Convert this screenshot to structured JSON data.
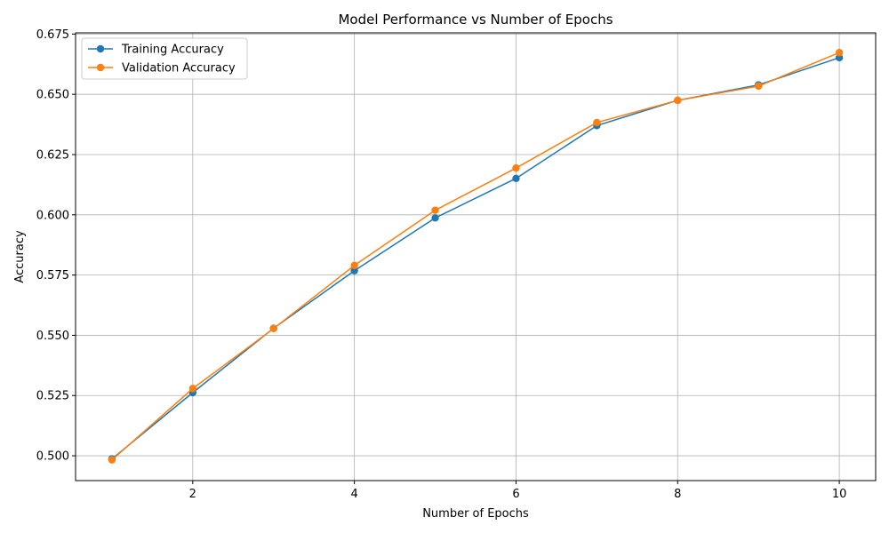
{
  "chart_data": {
    "type": "line",
    "title": "Model Performance vs Number of Epochs",
    "xlabel": "Number of Epochs",
    "ylabel": "Accuracy",
    "x": [
      1,
      2,
      3,
      4,
      5,
      6,
      7,
      8,
      9,
      10
    ],
    "xlim": [
      0.55,
      10.45
    ],
    "ylim": [
      0.4897,
      0.6755
    ],
    "xticks": [
      2,
      4,
      6,
      8,
      10
    ],
    "yticks": [
      0.5,
      0.525,
      0.55,
      0.575,
      0.6,
      0.625,
      0.65,
      0.675
    ],
    "ytick_labels": [
      "0.500",
      "0.525",
      "0.550",
      "0.575",
      "0.600",
      "0.625",
      "0.650",
      "0.675"
    ],
    "grid": true,
    "legend_position": "top-left",
    "series": [
      {
        "name": "Training Accuracy",
        "color": "#1f77b4",
        "values": [
          0.4987,
          0.5262,
          0.5529,
          0.5768,
          0.5987,
          0.6151,
          0.637,
          0.6475,
          0.6539,
          0.6652
        ]
      },
      {
        "name": "Validation Accuracy",
        "color": "#ff7f0e",
        "values": [
          0.4983,
          0.5279,
          0.5528,
          0.579,
          0.6019,
          0.6194,
          0.6383,
          0.6475,
          0.6534,
          0.6673
        ]
      }
    ]
  }
}
